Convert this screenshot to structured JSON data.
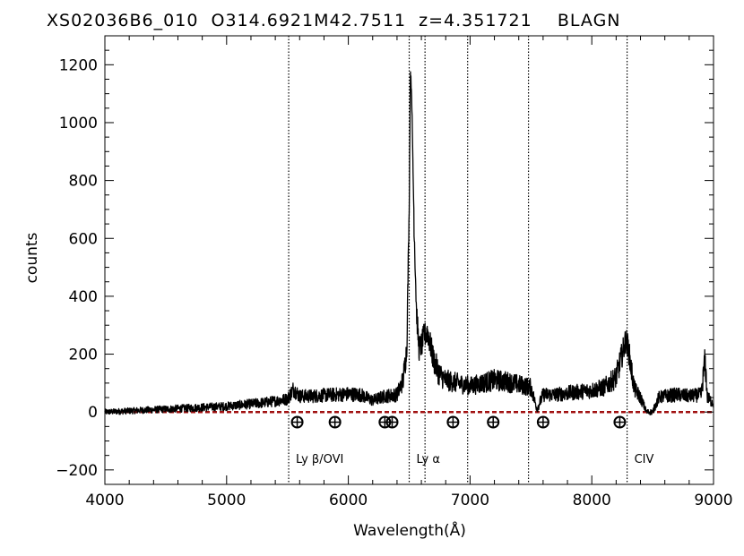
{
  "chart_data": {
    "type": "line",
    "title": "XS02036B6_010  O314.6921M42.7511  z=4.351721    BLAGN",
    "xlabel": "Wavelength(Å)",
    "ylabel": "counts",
    "xlim": [
      4000,
      9000
    ],
    "ylim": [
      -250,
      1300
    ],
    "x_ticks": [
      4000,
      5000,
      6000,
      7000,
      8000,
      9000
    ],
    "y_ticks": [
      -200,
      0,
      200,
      400,
      600,
      800,
      1000,
      1200
    ],
    "x_tick_labels": [
      "4000",
      "5000",
      "6000",
      "7000",
      "8000",
      "9000"
    ],
    "y_tick_labels": [
      "−200",
      "0",
      "200",
      "400",
      "600",
      "800",
      "1000",
      "1200"
    ],
    "series": [
      {
        "color": "#000000",
        "x": [
          4000,
          4100,
          4200,
          4300,
          4400,
          4500,
          4600,
          4700,
          4800,
          4900,
          5000,
          5100,
          5200,
          5300,
          5400,
          5500,
          5550,
          5600,
          5700,
          5800,
          5900,
          6000,
          6100,
          6200,
          6300,
          6400,
          6450,
          6480,
          6500,
          6510,
          6520,
          6540,
          6560,
          6580,
          6600,
          6620,
          6650,
          6700,
          6750,
          6800,
          6900,
          7000,
          7100,
          7200,
          7300,
          7400,
          7500,
          7550,
          7600,
          7700,
          7800,
          7900,
          8000,
          8100,
          8200,
          8250,
          8280,
          8300,
          8320,
          8350,
          8400,
          8450,
          8500,
          8550,
          8600,
          8700,
          8800,
          8900,
          8930,
          8950,
          9000
        ],
        "y": [
          0,
          2,
          4,
          6,
          8,
          10,
          12,
          14,
          16,
          18,
          20,
          24,
          28,
          32,
          38,
          45,
          80,
          55,
          55,
          58,
          60,
          62,
          60,
          40,
          55,
          60,
          110,
          220,
          700,
          1180,
          1100,
          650,
          350,
          220,
          230,
          260,
          280,
          180,
          130,
          110,
          100,
          90,
          100,
          110,
          105,
          95,
          85,
          10,
          60,
          60,
          65,
          70,
          75,
          85,
          120,
          200,
          250,
          220,
          160,
          80,
          50,
          0,
          0,
          50,
          55,
          60,
          55,
          60,
          180,
          50,
          30
        ]
      }
    ],
    "reference_line": {
      "y": 0,
      "color": "#a01010",
      "style": "dashed"
    },
    "vertical_lines": [
      5510,
      6500,
      6630,
      6980,
      7480,
      8290
    ],
    "line_labels": [
      {
        "text": "Ly β/OVI",
        "x": 5510
      },
      {
        "text": "Ly α",
        "x": 6500
      },
      {
        "text": "CIV",
        "x": 8290
      }
    ],
    "telluric_markers": [
      5580,
      5890,
      6300,
      6360,
      6860,
      7190,
      7600,
      8230
    ],
    "grid": false,
    "legend": "none"
  }
}
